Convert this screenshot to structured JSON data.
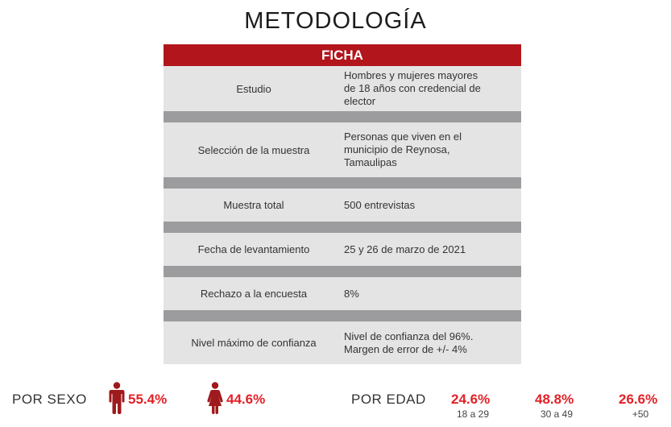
{
  "title": "METODOLOGÍA",
  "ficha": {
    "header": "FICHA",
    "rows": [
      {
        "label": "Estudio",
        "value_lines": [
          "Hombres y mujeres mayores",
          "de 18 años con credencial de",
          "elector"
        ]
      },
      {
        "label": "Selección de la muestra",
        "value_lines": [
          "Personas que viven en el",
          "municipio de Reynosa,",
          "Tamaulipas"
        ]
      },
      {
        "label": "Muestra total",
        "value_lines": [
          "500 entrevistas"
        ]
      },
      {
        "label": "Fecha de levantamiento",
        "value_lines": [
          "25 y 26 de marzo de 2021"
        ]
      },
      {
        "label": "Rechazo a la encuesta",
        "value_lines": [
          "8%"
        ]
      },
      {
        "label": "Nivel máximo de confianza",
        "value_lines": [
          "Nivel de confianza del 96%.",
          "Margen de error de +/- 4%"
        ]
      }
    ]
  },
  "por_sexo": {
    "label": "POR SEXO",
    "hombres": "55.4%",
    "mujeres": "44.6%"
  },
  "por_edad": {
    "label": "POR EDAD",
    "groups": [
      {
        "pct": "24.6%",
        "range": "18 a 29"
      },
      {
        "pct": "48.8%",
        "range": "30 a 49"
      },
      {
        "pct": "26.6%",
        "range": "+50"
      }
    ]
  },
  "colors": {
    "accent_red": "#b2151b",
    "percent_red": "#e32127",
    "icon_red": "#9e1a1d"
  }
}
